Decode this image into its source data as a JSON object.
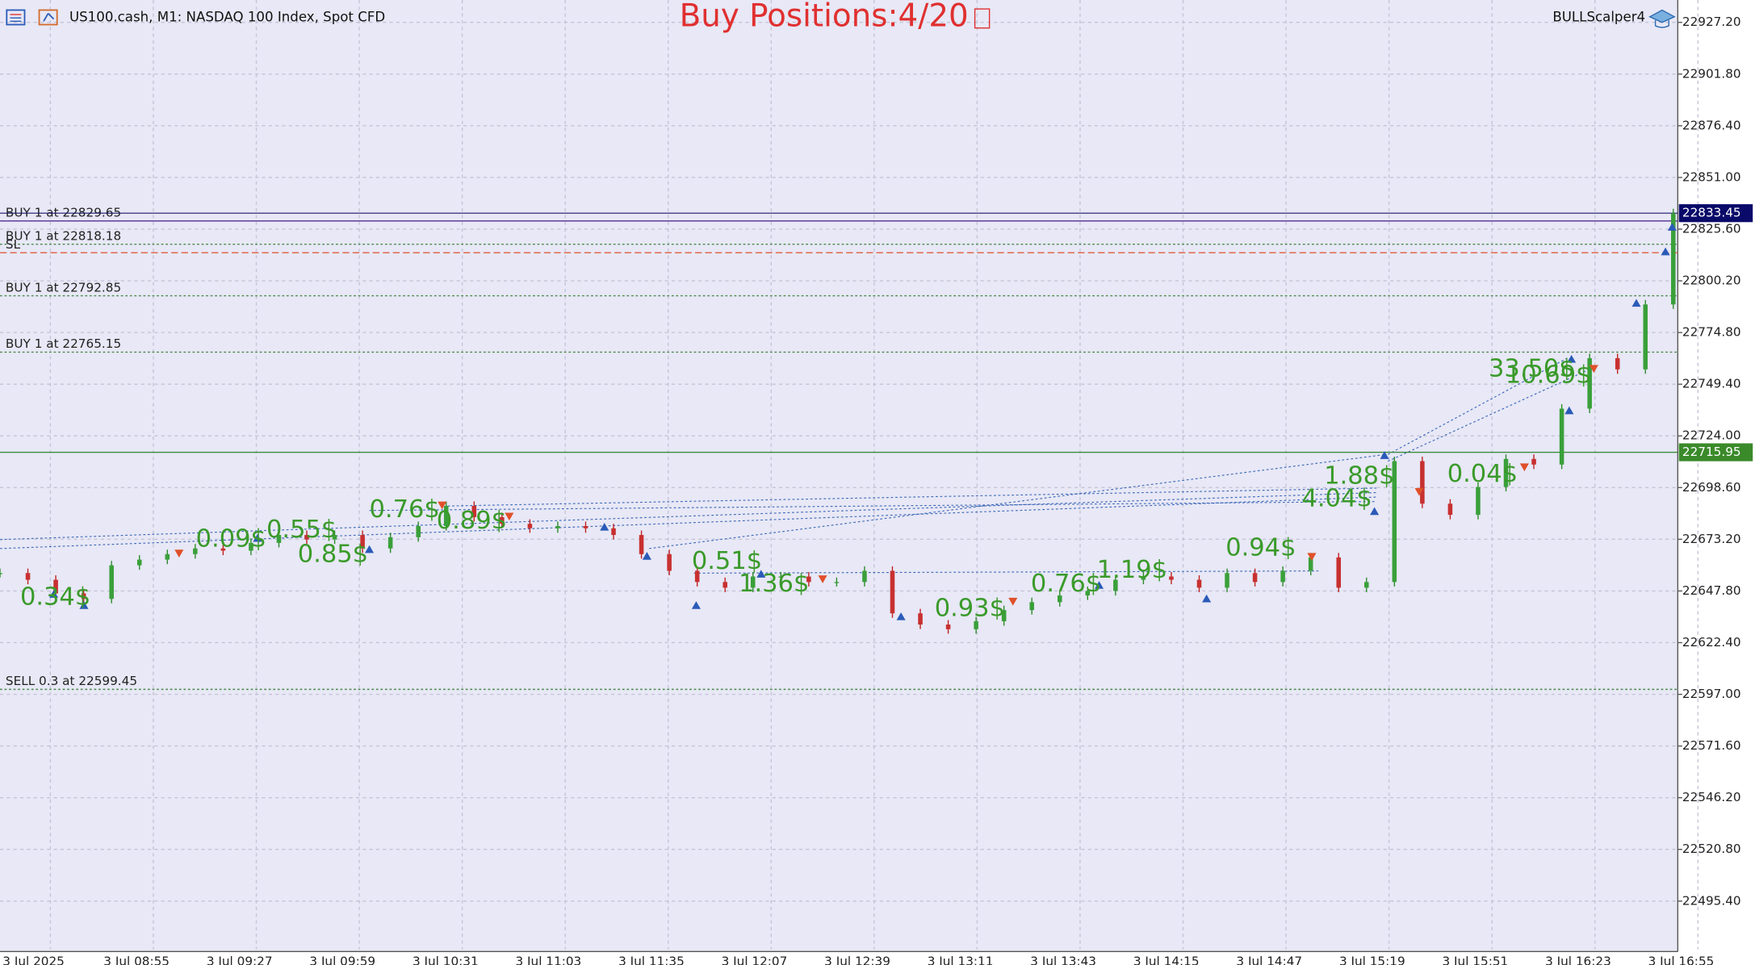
{
  "header": {
    "symbol": "US100.cash, M1:  NASDAQ 100 Index, Spot CFD",
    "banner": "Buy Positions:4/20",
    "expert": "BULLScalper4"
  },
  "price_axis": {
    "ylim": [
      22471.7,
      22938.2
    ],
    "yticks": [
      {
        "value": 22927.2,
        "label": "22927.20"
      },
      {
        "value": 22901.8,
        "label": "22901.80"
      },
      {
        "value": 22876.4,
        "label": "22876.40"
      },
      {
        "value": 22851.0,
        "label": "22851.00"
      },
      {
        "value": 22825.6,
        "label": "22825.60"
      },
      {
        "value": 22800.2,
        "label": "22800.20"
      },
      {
        "value": 22774.8,
        "label": "22774.80"
      },
      {
        "value": 22749.4,
        "label": "22749.40"
      },
      {
        "value": 22724.0,
        "label": "22724.00"
      },
      {
        "value": 22698.6,
        "label": "22698.60"
      },
      {
        "value": 22673.2,
        "label": "22673.20"
      },
      {
        "value": 22647.8,
        "label": "22647.80"
      },
      {
        "value": 22622.4,
        "label": "22622.40"
      },
      {
        "value": 22597.0,
        "label": "22597.00"
      },
      {
        "value": 22571.6,
        "label": "22571.60"
      },
      {
        "value": 22546.2,
        "label": "22546.20"
      },
      {
        "value": 22520.8,
        "label": "22520.80"
      },
      {
        "value": 22495.4,
        "label": "22495.40"
      }
    ],
    "current_price": {
      "value": 22833.45,
      "label": "22833.45"
    },
    "level_line": {
      "value": 22715.95,
      "label": "22715.95"
    }
  },
  "time_axis": {
    "labels": [
      "3 Jul 2025",
      "3 Jul 08:55",
      "3 Jul 09:27",
      "3 Jul 09:59",
      "3 Jul 10:31",
      "3 Jul 11:03",
      "3 Jul 11:35",
      "3 Jul 12:07",
      "3 Jul 12:39",
      "3 Jul 13:11",
      "3 Jul 13:43",
      "3 Jul 14:15",
      "3 Jul 14:47",
      "3 Jul 15:19",
      "3 Jul 15:51",
      "3 Jul 16:23",
      "3 Jul 16:55"
    ]
  },
  "orders": [
    {
      "label": "BUY 1 at 22829.65",
      "price": 22829.65
    },
    {
      "label": "BUY 1 at 22818.18",
      "price": 22818.18
    },
    {
      "label": "SL",
      "price": 22814
    },
    {
      "label": "BUY 1 at 22792.85",
      "price": 22792.85
    },
    {
      "label": "BUY 1 at 22765.15",
      "price": 22765.15
    },
    {
      "label": "SELL 0.3 at 22599.45",
      "price": 22599.45
    }
  ],
  "price_series": {
    "values": [
      22656.6,
      22653.3,
      22646.6,
      22643.9,
      22660.4,
      22663.2,
      22665.9,
      22668.7,
      22667.6,
      22671.4,
      22675.3,
      22673.1,
      22675.3,
      22668.7,
      22674.2,
      22679.7,
      22689.6,
      22684.1,
      22680.8,
      22678.6,
      22679.7,
      22678.6,
      22675.3,
      22665.9,
      22657.7,
      22652.2,
      22649.4,
      22654.9,
      22654.9,
      22652.2,
      22652.2,
      22657.7,
      22636.8,
      22631.3,
      22629.0,
      22632.9,
      22638.4,
      22642.3,
      22645.6,
      22647.8,
      22653.3,
      22654.9,
      22653.3,
      22649.4,
      22656.6,
      22652.2,
      22657.7,
      22664.3,
      22649.4,
      22652.2,
      22711.6,
      22690.7,
      22685.2,
      22698.9,
      22712.7,
      22709.9,
      22737.4,
      22762.2,
      22756.7,
      22788.6,
      22833.4
    ]
  },
  "trade_labels": [
    "0.34$",
    "0.85$",
    "0.09$",
    "0.55$",
    "0.76$",
    "0.89$",
    "0.51$",
    "1.36$",
    "0.93$",
    "0.76$",
    "1.19$",
    "0.94$",
    "4.04$",
    "1.88$",
    "0.04$",
    "33.50$",
    "10.69$"
  ]
}
